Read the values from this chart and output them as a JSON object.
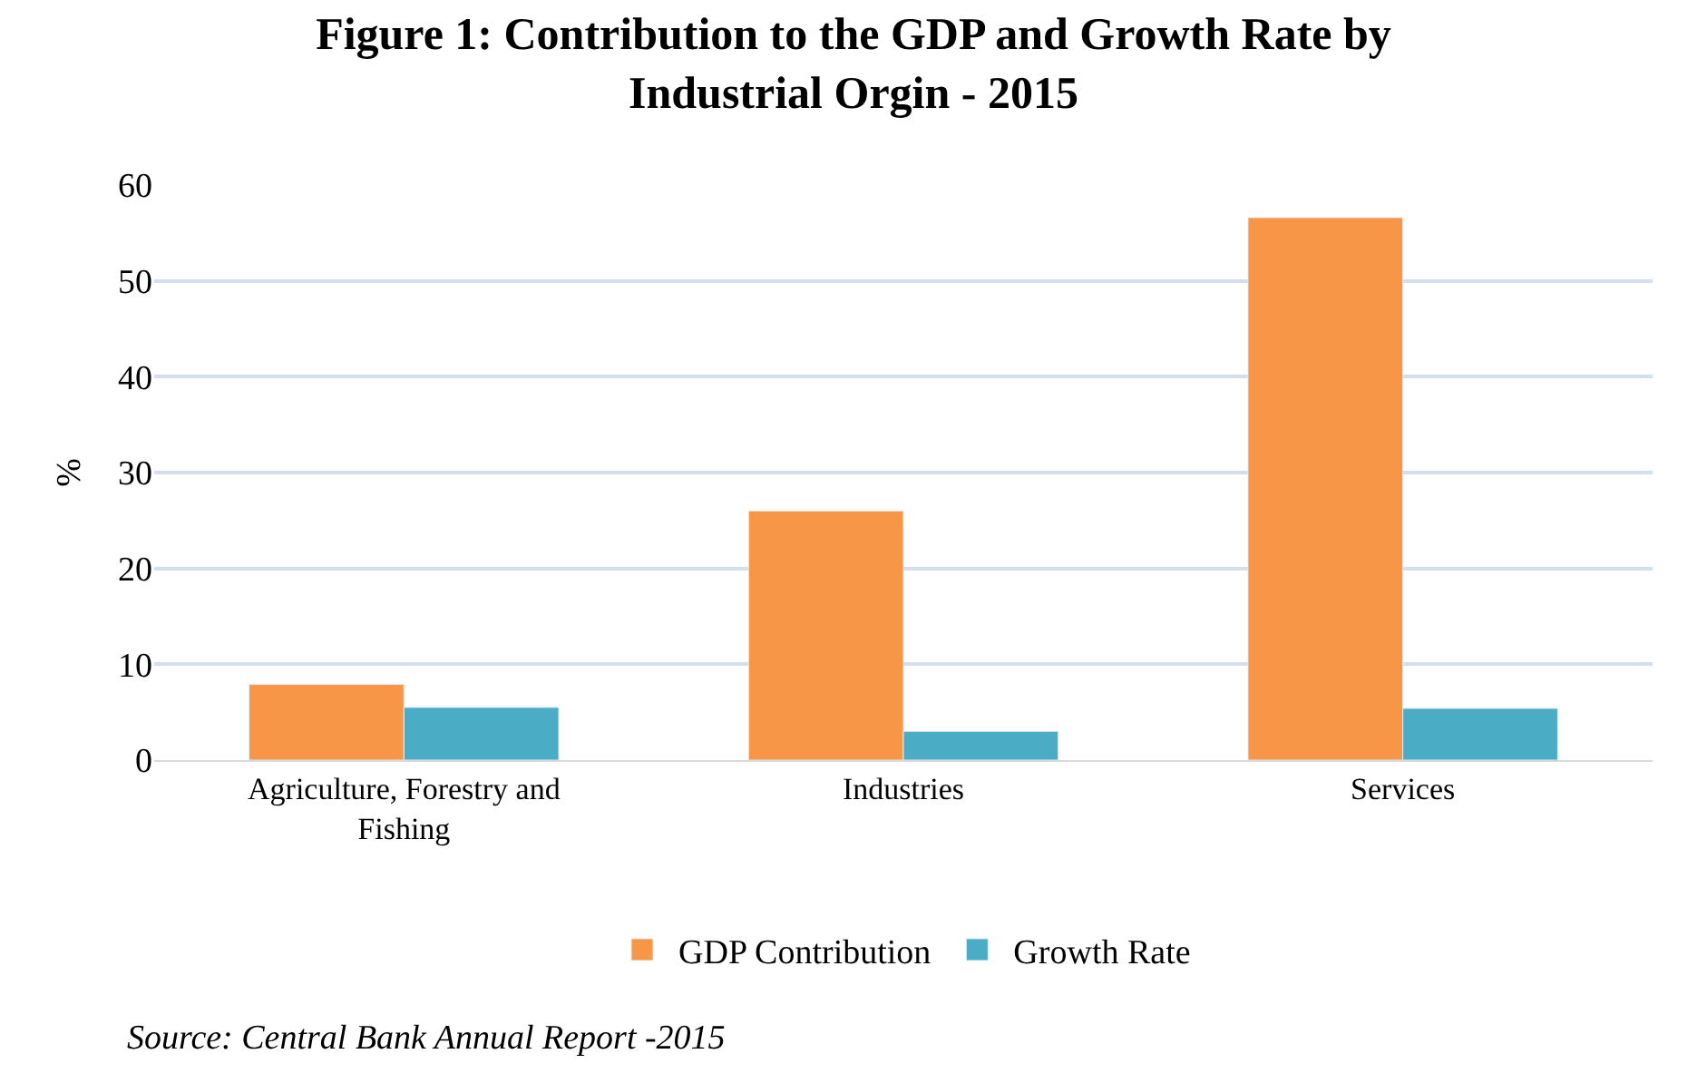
{
  "chart_data": {
    "type": "bar",
    "title": "Figure 1: Contribution to the GDP and Growth Rate by Industrial Orgin - 2015",
    "ylabel": "%",
    "categories": [
      "Agriculture, Forestry and Fishing",
      "Industries",
      "Services"
    ],
    "series": [
      {
        "name": "GDP Contribution",
        "color": "#f79646",
        "values": [
          7.9,
          26.0,
          56.6
        ]
      },
      {
        "name": "Growth Rate",
        "color": "#4bacc6",
        "values": [
          5.5,
          3.0,
          5.4
        ]
      }
    ],
    "ylim": [
      0,
      60
    ],
    "yticks": [
      0,
      10,
      20,
      30,
      40,
      50,
      60
    ],
    "grid": "y",
    "legend": "bottom",
    "annotations": [
      "Source: Central Bank Annual Report -2015"
    ]
  }
}
